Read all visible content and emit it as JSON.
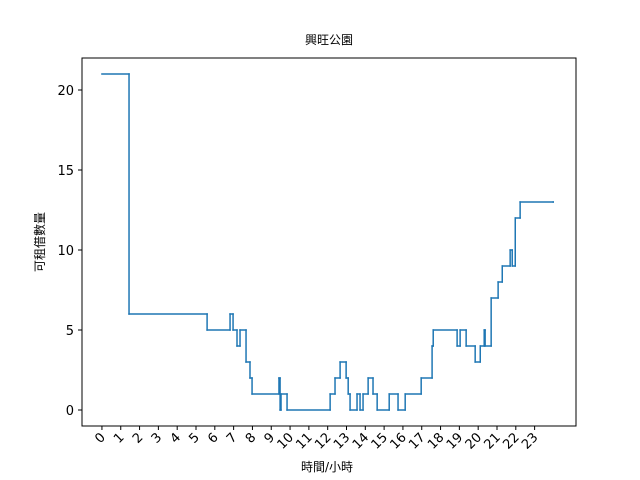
{
  "chart_data": {
    "type": "step",
    "title": "興旺公園",
    "xlabel": "時間/小時",
    "ylabel": "可租借數量",
    "x": [
      0,
      1.44,
      5.59,
      6.81,
      6.97,
      7.18,
      7.34,
      7.66,
      7.87,
      7.98,
      9.41,
      9.47,
      9.52,
      9.84,
      12.13,
      12.39,
      12.66,
      12.98,
      13.09,
      13.19,
      13.56,
      13.72,
      13.88,
      14.15,
      14.41,
      14.63,
      15.27,
      15.74,
      16.12,
      16.97,
      17.55,
      17.61,
      18.88,
      19.04,
      19.36,
      19.84,
      20.11,
      20.32,
      20.37,
      20.69,
      21.06,
      21.28,
      21.7,
      21.81,
      21.97,
      22.23,
      23.99
    ],
    "values": [
      21,
      6,
      5,
      6,
      5,
      4,
      5,
      3,
      2,
      1,
      2,
      0,
      1,
      0,
      1,
      2,
      3,
      2,
      1,
      0,
      1,
      0,
      1,
      2,
      1,
      0,
      1,
      0,
      1,
      2,
      4,
      5,
      4,
      5,
      4,
      3,
      4,
      5,
      4,
      7,
      8,
      9,
      10,
      9,
      12,
      13,
      13
    ],
    "color": "#1f77b4",
    "xlim": [
      -1.06,
      25.2
    ],
    "xticks": [
      0,
      1,
      2,
      3,
      4,
      5,
      6,
      7,
      8,
      9,
      10,
      11,
      12,
      13,
      14,
      15,
      16,
      17,
      18,
      19,
      20,
      21,
      22,
      23
    ],
    "ylim": [
      -1,
      22
    ],
    "yticks": [
      0,
      5,
      10,
      15,
      20
    ]
  }
}
